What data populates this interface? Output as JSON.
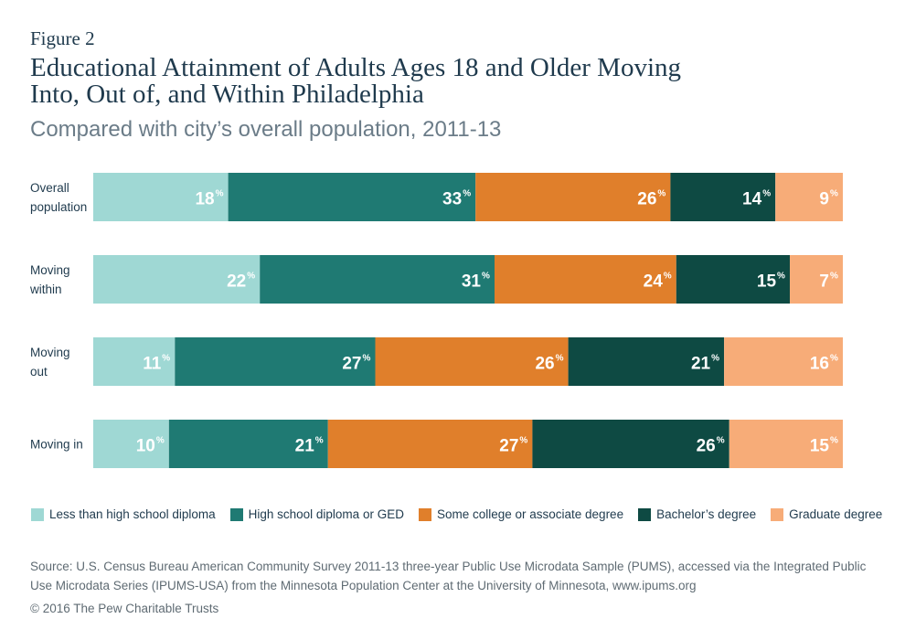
{
  "figure_label": "Figure 2",
  "title_lines": [
    "Educational Attainment of Adults Ages 18 and Older Moving",
    "Into, Out of, and Within Philadelphia"
  ],
  "subtitle": "Compared with city’s overall population, 2011-13",
  "chart_data": {
    "type": "bar",
    "orientation": "horizontal",
    "stacked": true,
    "percent_stacked": true,
    "categories": [
      [
        "Overall",
        "population"
      ],
      [
        "Moving",
        "within"
      ],
      [
        "Moving",
        "out"
      ],
      [
        "Moving in"
      ]
    ],
    "series": [
      {
        "name": "Less than high school diploma",
        "color": "#9fd8d4",
        "values": [
          18,
          22,
          11,
          10
        ]
      },
      {
        "name": "High school diploma or GED",
        "color": "#1f7a73",
        "values": [
          33,
          31,
          27,
          21
        ]
      },
      {
        "name": "Some college or associate degree",
        "color": "#e07f2b",
        "values": [
          26,
          24,
          26,
          27
        ]
      },
      {
        "name": "Bachelor’s degree",
        "color": "#0e4a43",
        "values": [
          14,
          15,
          21,
          26
        ]
      },
      {
        "name": "Graduate degree",
        "color": "#f7ac78",
        "values": [
          9,
          7,
          16,
          15
        ]
      }
    ],
    "value_suffix": "%",
    "legend_position": "bottom",
    "grid": false
  },
  "source": "Source: U.S. Census Bureau American Community Survey 2011-13 three-year Public Use Microdata Sample (PUMS), accessed via the Integrated Public Use Microdata Series (IPUMS-USA) from the Minnesota Population Center at the University of Minnesota, www.ipums.org",
  "copyright": "© 2016 The Pew Charitable Trusts"
}
